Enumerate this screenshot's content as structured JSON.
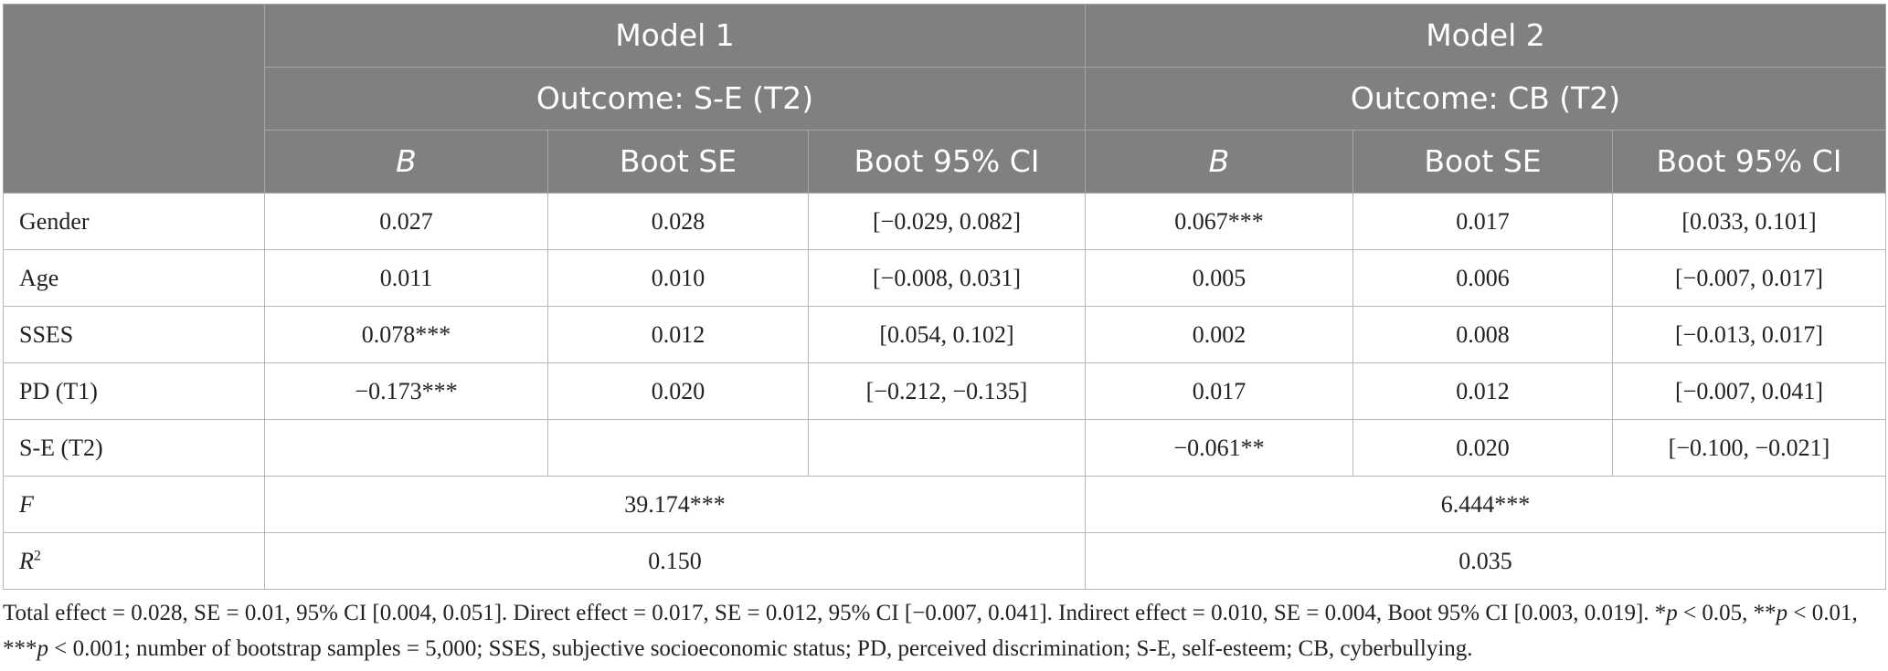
{
  "header": {
    "model1": "Model 1",
    "model2": "Model 2",
    "outcome1": "Outcome: S-E (T2)",
    "outcome2": "Outcome: CB (T2)",
    "col_b": "B",
    "col_se": "Boot SE",
    "col_ci": "Boot 95% CI"
  },
  "rows": [
    {
      "label": "Gender",
      "m1": {
        "b": "0.027",
        "se": "0.028",
        "ci": "[−0.029, 0.082]"
      },
      "m2": {
        "b": "0.067***",
        "se": "0.017",
        "ci": "[0.033, 0.101]"
      }
    },
    {
      "label": "Age",
      "m1": {
        "b": "0.011",
        "se": "0.010",
        "ci": "[−0.008, 0.031]"
      },
      "m2": {
        "b": "0.005",
        "se": "0.006",
        "ci": "[−0.007, 0.017]"
      }
    },
    {
      "label": "SSES",
      "m1": {
        "b": "0.078***",
        "se": "0.012",
        "ci": "[0.054, 0.102]"
      },
      "m2": {
        "b": "0.002",
        "se": "0.008",
        "ci": "[−0.013, 0.017]"
      }
    },
    {
      "label": "PD (T1)",
      "m1": {
        "b": "−0.173***",
        "se": "0.020",
        "ci": "[−0.212, −0.135]"
      },
      "m2": {
        "b": "0.017",
        "se": "0.012",
        "ci": "[−0.007, 0.041]"
      }
    },
    {
      "label": "S-E (T2)",
      "m1": {
        "b": "",
        "se": "",
        "ci": ""
      },
      "m2": {
        "b": "−0.061**",
        "se": "0.020",
        "ci": "[−0.100, −0.021]"
      }
    }
  ],
  "stats": {
    "f_label": "F",
    "f_m1": "39.174***",
    "f_m2": "6.444***",
    "r2_label": "R",
    "r2_sup": "2",
    "r2_m1": "0.150",
    "r2_m2": "0.035"
  },
  "note": {
    "part1": "Total effect = 0.028, SE = 0.01, 95% CI [0.004, 0.051]. Direct effect = 0.017, SE = 0.012, 95% CI [−0.007, 0.041]. Indirect effect = 0.010, SE = 0.004, Boot 95% CI [0.003, 0.019]. *",
    "p1": "p",
    "part2": " < 0.05, **",
    "p2": "p",
    "part3": " < 0.01, ***",
    "p3": "p",
    "part4": " < 0.001; number of bootstrap samples = 5,000; SSES, subjective socioeconomic status; PD, perceived discrimination; S-E, self-esteem; CB, cyberbullying."
  }
}
